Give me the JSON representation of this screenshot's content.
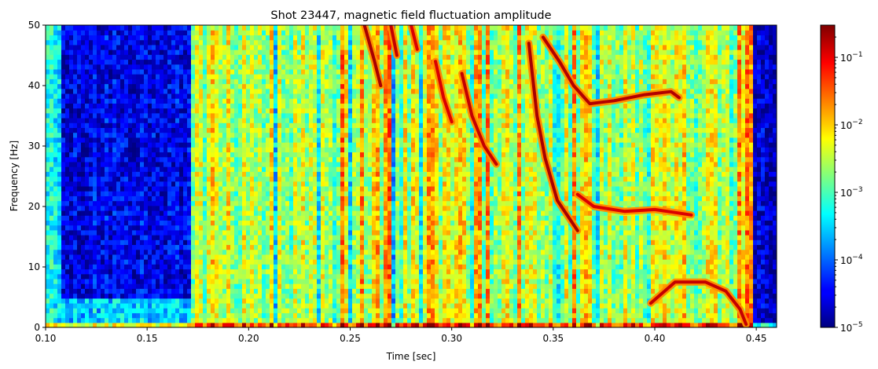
{
  "chart_data": {
    "type": "heatmap",
    "title": "Shot 23447, magnetic field fluctuation amplitude",
    "xlabel": "Time [sec]",
    "ylabel": "Frequency [Hz]",
    "xlim": [
      0.1,
      0.46
    ],
    "ylim": [
      0,
      50
    ],
    "x_ticks": [
      0.1,
      0.15,
      0.2,
      0.25,
      0.3,
      0.35,
      0.4,
      0.45
    ],
    "x_tick_labels": [
      "0.10",
      "0.15",
      "0.20",
      "0.25",
      "0.30",
      "0.35",
      "0.40",
      "0.45"
    ],
    "y_ticks": [
      0,
      10,
      20,
      30,
      40,
      50
    ],
    "y_tick_labels": [
      "0",
      "10",
      "20",
      "30",
      "40",
      "50"
    ],
    "colormap": "jet",
    "color_scale": "log",
    "colorbar": {
      "range": [
        1e-05,
        0.3
      ],
      "ticks": [
        {
          "value": 0.1,
          "base": "10",
          "exp": "−1"
        },
        {
          "value": 0.01,
          "base": "10",
          "exp": "−2"
        },
        {
          "value": 0.001,
          "base": "10",
          "exp": "−3"
        },
        {
          "value": 0.0001,
          "base": "10",
          "exp": "−4"
        },
        {
          "value": 1e-05,
          "base": "10",
          "exp": "−5"
        }
      ]
    },
    "regions": [
      {
        "t": [
          0.1,
          0.108
        ],
        "f": [
          0,
          50
        ],
        "level": 0.0005
      },
      {
        "t": [
          0.108,
          0.172
        ],
        "f": [
          5,
          50
        ],
        "level": 3e-05
      },
      {
        "t": [
          0.108,
          0.172
        ],
        "f": [
          0,
          5
        ],
        "level": 0.0003
      },
      {
        "t": [
          0.172,
          0.445
        ],
        "f": [
          0,
          50
        ],
        "level": 0.003
      },
      {
        "t": [
          0.445,
          0.449
        ],
        "f": [
          0,
          50
        ],
        "level": 0.02
      },
      {
        "t": [
          0.449,
          0.46
        ],
        "f": [
          0,
          50
        ],
        "level": 2e-05
      }
    ],
    "vertical_bursts": [
      0.245,
      0.255,
      0.262,
      0.268,
      0.275,
      0.283,
      0.29,
      0.297,
      0.305,
      0.312,
      0.333,
      0.36,
      0.367
    ],
    "mode_traces": [
      {
        "name": "",
        "points": [
          [
            0.257,
            50
          ],
          [
            0.262,
            44
          ],
          [
            0.265,
            40
          ]
        ],
        "level": 0.2
      },
      {
        "name": "",
        "points": [
          [
            0.27,
            50
          ],
          [
            0.273,
            45
          ]
        ],
        "level": 0.15
      },
      {
        "name": "",
        "points": [
          [
            0.28,
            50
          ],
          [
            0.283,
            46
          ]
        ],
        "level": 0.12
      },
      {
        "name": "",
        "points": [
          [
            0.292,
            44
          ],
          [
            0.296,
            38
          ],
          [
            0.3,
            34
          ]
        ],
        "level": 0.12
      },
      {
        "name": "",
        "points": [
          [
            0.305,
            42
          ],
          [
            0.31,
            35
          ],
          [
            0.316,
            30
          ],
          [
            0.322,
            27
          ]
        ],
        "level": 0.15
      },
      {
        "name": "",
        "points": [
          [
            0.338,
            47
          ],
          [
            0.342,
            35
          ],
          [
            0.346,
            28
          ],
          [
            0.352,
            21
          ],
          [
            0.358,
            18
          ],
          [
            0.362,
            16
          ]
        ],
        "level": 0.2
      },
      {
        "name": "",
        "points": [
          [
            0.345,
            48
          ],
          [
            0.353,
            44
          ],
          [
            0.36,
            40
          ],
          [
            0.368,
            37
          ],
          [
            0.38,
            37.5
          ],
          [
            0.395,
            38.5
          ],
          [
            0.408,
            39
          ],
          [
            0.412,
            38
          ]
        ],
        "level": 0.18
      },
      {
        "name": "",
        "points": [
          [
            0.362,
            22
          ],
          [
            0.37,
            20
          ],
          [
            0.385,
            19.2
          ],
          [
            0.4,
            19.5
          ],
          [
            0.41,
            19
          ],
          [
            0.418,
            18.6
          ]
        ],
        "level": 0.12
      },
      {
        "name": "",
        "points": [
          [
            0.398,
            4
          ],
          [
            0.41,
            7.5
          ],
          [
            0.425,
            7.5
          ],
          [
            0.435,
            6
          ],
          [
            0.442,
            3
          ],
          [
            0.445,
            0.5
          ]
        ],
        "level": 0.15
      }
    ]
  }
}
